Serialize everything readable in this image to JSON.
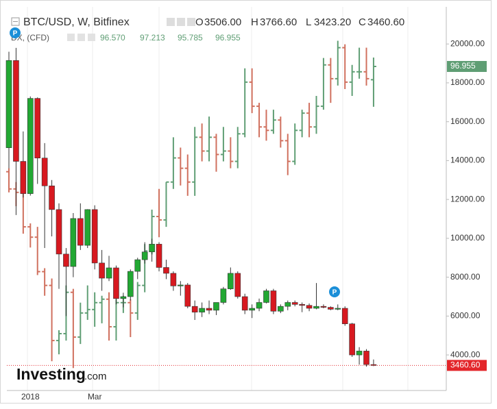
{
  "chart_data": {
    "type": "candlestick",
    "categories": [
      null,
      null,
      null,
      "2018",
      null,
      null,
      null,
      null,
      null,
      null,
      null,
      null,
      "Mar",
      null,
      null,
      null,
      null,
      null,
      null,
      null,
      null,
      null,
      null,
      null,
      null,
      null,
      null,
      null,
      null,
      null,
      null,
      null,
      null,
      null,
      null,
      null,
      null,
      null,
      null,
      null,
      null,
      null,
      null,
      null,
      null,
      null,
      null,
      null,
      null,
      null,
      null,
      null
    ],
    "ylim": [
      2170,
      21910
    ],
    "yticks": [
      {
        "value": 4000,
        "label": "4000.00"
      },
      {
        "value": 6000,
        "label": "6000.00"
      },
      {
        "value": 8000,
        "label": "8000.00"
      },
      {
        "value": 10000,
        "label": "10000.00"
      },
      {
        "value": 12000,
        "label": "12000.00"
      },
      {
        "value": 14000,
        "label": "14000.00"
      },
      {
        "value": 16000,
        "label": "16000.00"
      },
      {
        "value": 18000,
        "label": "18000.00"
      },
      {
        "value": 20000,
        "label": "20000.00"
      }
    ],
    "y2lim": [
      87.55,
      98.685
    ],
    "grid": false,
    "series": [
      {
        "name": "BTC/USD, W, Bitfinex",
        "style": "candles",
        "up_color": "#22a833",
        "down_color": "#d71920",
        "readout": [
          {
            "key": "O",
            "value": 3506,
            "label": "3506.00"
          },
          {
            "key": "H",
            "value": 3766.6,
            "label": "3766.60"
          },
          {
            "key": "L",
            "value": 3423.2,
            "label": "3423.20"
          },
          {
            "key": "C",
            "value": 3460.6,
            "label": "3460.60"
          }
        ],
        "last": {
          "value": 3460.6,
          "label": "3460.60",
          "color": "#e3262b"
        },
        "open": [
          14660,
          19150,
          13960,
          12300,
          17200,
          14130,
          12700,
          11480,
          9190,
          8550,
          11020,
          9640,
          11480,
          8730,
          7950,
          8480,
          6900,
          7000,
          8300,
          8900,
          9300,
          9700,
          8500,
          8200,
          7550,
          7600,
          6500,
          6200,
          6400,
          6300,
          6700,
          7400,
          8200,
          7000,
          6300,
          6400,
          6700,
          7300,
          6250,
          6500,
          6700,
          6600,
          6550,
          6400,
          6500,
          6450,
          6350,
          6400,
          5600,
          4000,
          4200,
          3506
        ],
        "high": [
          19600,
          19800,
          15500,
          17300,
          17250,
          14900,
          13000,
          11800,
          9500,
          11300,
          11800,
          11500,
          11700,
          9400,
          9100,
          8600,
          7200,
          8400,
          9000,
          9800,
          9980,
          9800,
          8900,
          8300,
          7800,
          7700,
          6800,
          6700,
          6800,
          6700,
          7500,
          8500,
          8300,
          7150,
          6600,
          6900,
          7400,
          7400,
          6600,
          6800,
          6800,
          6700,
          6650,
          7700,
          6600,
          6500,
          6600,
          6500,
          5650,
          4400,
          4300,
          3766.6
        ],
        "low": [
          13600,
          11200,
          12100,
          12200,
          12800,
          9500,
          10100,
          7400,
          6000,
          8000,
          9400,
          9500,
          8400,
          7300,
          7800,
          6600,
          6450,
          6800,
          7900,
          8700,
          8800,
          8300,
          7900,
          7300,
          7050,
          6400,
          5800,
          5950,
          6100,
          6050,
          6600,
          7350,
          6900,
          6100,
          5900,
          6250,
          6650,
          6100,
          6150,
          6300,
          6500,
          6200,
          6250,
          6350,
          6400,
          6300,
          6300,
          5500,
          3900,
          3500,
          3400,
          3423.2
        ],
        "close": [
          19150,
          13960,
          12300,
          17200,
          14130,
          12700,
          11480,
          9190,
          8550,
          11020,
          9640,
          11480,
          8730,
          7950,
          8480,
          6900,
          7000,
          8300,
          8900,
          9300,
          9700,
          8500,
          8200,
          7550,
          7600,
          6500,
          6200,
          6400,
          6300,
          6700,
          7400,
          8200,
          7000,
          6300,
          6400,
          6700,
          7300,
          6250,
          6500,
          6700,
          6600,
          6550,
          6400,
          6500,
          6450,
          6350,
          6400,
          5600,
          4000,
          4200,
          3506,
          3460.6
        ]
      },
      {
        "name": "DX, (CFD)",
        "style": "bars",
        "axis": "y2",
        "up_color": "#5f9e74",
        "down_color": "#d0705e",
        "readout": [
          {
            "value": 96.57,
            "label": "96.570"
          },
          {
            "value": 97.213,
            "label": "97.213"
          },
          {
            "value": 95.785,
            "label": "95.785"
          },
          {
            "value": 96.955,
            "label": "96.955"
          }
        ],
        "last": {
          "value": 96.955,
          "label": "96.955",
          "color": "#5f9e74"
        },
        "open": [
          93.9,
          93.4,
          93.3,
          92.3,
          92.0,
          91.0,
          90.6,
          89.0,
          89.2,
          90.4,
          89.1,
          89.8,
          89.9,
          90.1,
          90.2,
          89.4,
          90.1,
          90.1,
          89.8,
          90.6,
          91.6,
          92.6,
          92.5,
          93.6,
          94.3,
          94.0,
          93.6,
          94.9,
          94.5,
          94.9,
          94.4,
          94.5,
          94.2,
          95.0,
          96.5,
          95.8,
          95.2,
          95.1,
          95.4,
          94.8,
          94.2,
          95.1,
          95.6,
          95.2,
          95.8,
          97.0,
          96.6,
          97.5,
          96.5,
          96.8,
          96.8,
          96.57
        ],
        "high": [
          94.0,
          93.6,
          93.4,
          92.4,
          92.3,
          91.1,
          90.8,
          89.3,
          90.6,
          90.5,
          90.1,
          90.6,
          90.4,
          90.3,
          90.4,
          90.2,
          90.3,
          90.2,
          90.7,
          91.8,
          92.8,
          93.4,
          93.6,
          94.9,
          94.6,
          94.4,
          95.2,
          95.3,
          95.5,
          95.0,
          95.2,
          94.9,
          95.2,
          96.9,
          96.9,
          95.9,
          95.7,
          95.7,
          95.5,
          95.0,
          95.3,
          95.7,
          95.9,
          96.1,
          97.2,
          97.2,
          97.7,
          97.6,
          97.0,
          97.5,
          97.5,
          97.213
        ],
        "low": [
          93.3,
          92.9,
          92.1,
          91.7,
          90.9,
          90.3,
          88.4,
          88.6,
          89.0,
          88.2,
          88.9,
          89.6,
          89.4,
          89.5,
          89.0,
          89.0,
          89.8,
          89.1,
          89.6,
          90.4,
          91.5,
          92.0,
          92.3,
          93.4,
          93.5,
          93.2,
          93.2,
          94.2,
          94.2,
          93.9,
          94.2,
          94.0,
          94.0,
          94.9,
          95.6,
          94.9,
          94.8,
          95.0,
          94.6,
          93.8,
          94.1,
          94.9,
          94.9,
          95.0,
          95.7,
          95.9,
          96.4,
          96.3,
          96.1,
          96.6,
          96.4,
          95.785
        ],
        "close": [
          93.4,
          93.3,
          92.3,
          92.0,
          91.0,
          90.6,
          89.0,
          89.2,
          90.4,
          89.1,
          89.8,
          89.9,
          90.1,
          90.2,
          89.4,
          90.1,
          90.1,
          89.8,
          90.6,
          91.6,
          92.6,
          92.5,
          93.6,
          94.3,
          94.0,
          93.6,
          94.9,
          94.5,
          94.9,
          94.4,
          94.5,
          94.2,
          95.0,
          96.5,
          95.8,
          95.2,
          95.1,
          95.4,
          94.8,
          94.2,
          95.1,
          95.6,
          95.2,
          95.8,
          97.0,
          96.6,
          97.5,
          96.5,
          96.8,
          96.8,
          96.6,
          96.955
        ]
      }
    ],
    "event_markers": [
      "P",
      "P"
    ],
    "watermark": [
      "Investing",
      ".com"
    ]
  }
}
